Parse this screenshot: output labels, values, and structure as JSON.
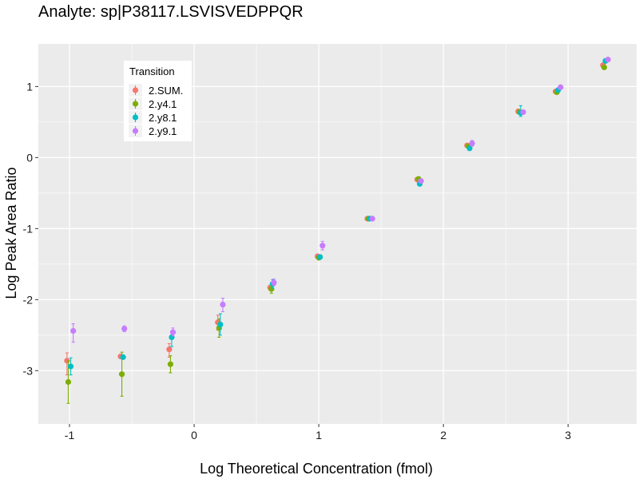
{
  "chart_data": {
    "type": "scatter",
    "title": "Analyte: sp|P38117.LSVISVEDPPQR",
    "xlabel": "Log Theoretical Concentration (fmol)",
    "ylabel": "Log Peak Area Ratio",
    "xlim": [
      -1.25,
      3.55
    ],
    "ylim": [
      -3.75,
      1.6
    ],
    "x_ticks": [
      -1,
      0,
      1,
      2,
      3
    ],
    "x_tick_labels": [
      "-1",
      "0",
      "1",
      "2",
      "3"
    ],
    "y_ticks": [
      -3,
      -2,
      -1,
      0,
      1
    ],
    "y_tick_labels": [
      "-3",
      "-2",
      "-1",
      "0",
      "1"
    ],
    "grid": true,
    "legend": {
      "title": "Transition",
      "position": "top-left inside"
    },
    "colors": {
      "2.SUM.": "#F8766D",
      "2.y4.1": "#7CAE00",
      "2.y8.1": "#00BFC4",
      "2.y9.1": "#C77CFF"
    },
    "series": [
      {
        "name": "2.SUM.",
        "x": [
          -1.02,
          -0.59,
          -0.2,
          0.19,
          0.61,
          0.99,
          1.39,
          1.79,
          2.19,
          2.6,
          2.9,
          3.28
        ],
        "y": [
          -2.86,
          -2.8,
          -2.7,
          -2.32,
          -1.83,
          -1.39,
          -0.86,
          -0.31,
          0.17,
          0.65,
          0.93,
          1.3
        ],
        "y_low": [
          -3.06,
          -2.82,
          -2.81,
          -2.43,
          -1.87,
          -1.42,
          -0.87,
          -0.32,
          0.15,
          0.63,
          0.91,
          1.28
        ],
        "y_high": [
          -2.75,
          -2.78,
          -2.62,
          -2.22,
          -1.8,
          -1.37,
          -0.85,
          -0.3,
          0.19,
          0.67,
          0.95,
          1.32
        ]
      },
      {
        "name": "2.y4.1",
        "x": [
          -1.01,
          -0.58,
          -0.19,
          0.2,
          0.62,
          1.0,
          1.4,
          1.8,
          2.2,
          2.61,
          2.91,
          3.29
        ],
        "y": [
          -3.16,
          -3.05,
          -2.91,
          -2.4,
          -1.85,
          -1.41,
          -0.86,
          -0.3,
          0.16,
          0.64,
          0.92,
          1.27
        ],
        "y_low": [
          -3.46,
          -3.36,
          -3.03,
          -2.53,
          -1.91,
          -1.44,
          -0.87,
          -0.32,
          0.14,
          0.62,
          0.9,
          1.25
        ],
        "y_high": [
          -2.86,
          -2.74,
          -2.79,
          -2.27,
          -1.79,
          -1.38,
          -0.85,
          -0.29,
          0.18,
          0.66,
          0.94,
          1.29
        ]
      },
      {
        "name": "2.y8.1",
        "x": [
          -0.99,
          -0.57,
          -0.18,
          0.21,
          0.63,
          1.01,
          1.41,
          1.81,
          2.21,
          2.62,
          2.92,
          3.3
        ],
        "y": [
          -2.94,
          -2.81,
          -2.53,
          -2.35,
          -1.78,
          -1.4,
          -0.86,
          -0.37,
          0.13,
          0.63,
          0.95,
          1.36
        ],
        "y_low": [
          -3.06,
          -2.83,
          -2.66,
          -2.5,
          -1.84,
          -1.43,
          -0.87,
          -0.39,
          0.11,
          0.58,
          0.93,
          1.34
        ],
        "y_high": [
          -2.82,
          -2.79,
          -2.45,
          -2.2,
          -1.72,
          -1.37,
          -0.85,
          -0.35,
          0.15,
          0.73,
          0.97,
          1.38
        ]
      },
      {
        "name": "2.y9.1",
        "x": [
          -0.97,
          -0.56,
          -0.17,
          0.23,
          0.64,
          1.03,
          1.43,
          1.82,
          2.23,
          2.64,
          2.94,
          3.32
        ],
        "y": [
          -2.44,
          -2.41,
          -2.46,
          -2.07,
          -1.76,
          -1.24,
          -0.86,
          -0.33,
          0.2,
          0.64,
          0.99,
          1.38
        ],
        "y_low": [
          -2.6,
          -2.45,
          -2.51,
          -2.17,
          -1.8,
          -1.3,
          -0.89,
          -0.35,
          0.16,
          0.62,
          0.97,
          1.36
        ],
        "y_high": [
          -2.34,
          -2.37,
          -2.4,
          -1.98,
          -1.71,
          -1.18,
          -0.83,
          -0.31,
          0.24,
          0.66,
          1.01,
          1.4
        ]
      }
    ]
  }
}
